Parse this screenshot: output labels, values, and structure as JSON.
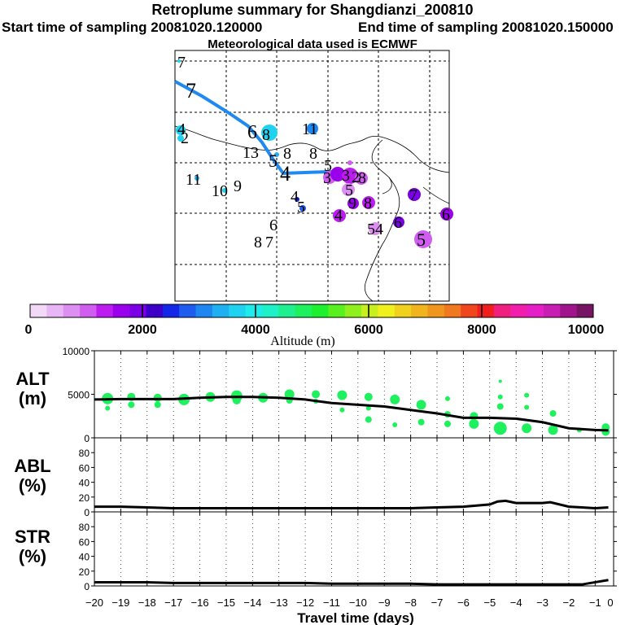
{
  "header": {
    "title": "Retroplume summary for Shangdianzi_200810",
    "start": "Start time of sampling 20081020.120000",
    "end": "End time of sampling 20081020.150000",
    "met": "Meteorological data used is ECMWF"
  },
  "colorbar": {
    "label": "Altitude (m)",
    "ticks": [
      "0",
      "2000",
      "4000",
      "6000",
      "8000",
      "10000"
    ],
    "colors": [
      "#f3d9f8",
      "#e9b6f5",
      "#dd8ff1",
      "#cf5ef0",
      "#bd1cf0",
      "#9a00ec",
      "#7b00e6",
      "#3c00c8",
      "#1426e8",
      "#1e5cf0",
      "#1e86f0",
      "#1eb0f0",
      "#1ed2f0",
      "#1eecea",
      "#1ef0c8",
      "#1ef090",
      "#1ef05e",
      "#1ef030",
      "#58f01e",
      "#90f01e",
      "#c8f01e",
      "#f0f01e",
      "#f0d21e",
      "#f0b41e",
      "#f0961e",
      "#f0781e",
      "#f0461e",
      "#f01e1e",
      "#f01e7e",
      "#f01eaa",
      "#e61ec8",
      "#c81eb4",
      "#a0148c",
      "#781464"
    ]
  },
  "map": {
    "labels": [
      "7",
      "7",
      "4",
      "2",
      "6",
      "8",
      "11",
      "13",
      "5",
      "8",
      "8",
      "5",
      "4",
      "3",
      "3",
      "2",
      "8",
      "5",
      "11",
      "10",
      "9",
      "4",
      "5",
      "6",
      "8",
      "7",
      "4",
      "9",
      "8",
      "7",
      "5",
      "4",
      "6",
      "6",
      "5"
    ]
  },
  "chart_data": [
    {
      "type": "line",
      "panel": "ALT",
      "ylabel_line1": "ALT",
      "ylabel_line2": "(m)",
      "ylim": [
        0,
        10000
      ],
      "yticks": [
        "0",
        "5000",
        "10000"
      ],
      "x": [
        -20,
        -19,
        -18,
        -17,
        -16,
        -15,
        -14,
        -13,
        -12,
        -11,
        -10,
        -9,
        -8,
        -7,
        -6,
        -5,
        -4,
        -3,
        -2,
        -1,
        -0.5
      ],
      "y": [
        4400,
        4450,
        4450,
        4450,
        4600,
        4700,
        4700,
        4600,
        4400,
        4000,
        3800,
        3600,
        3200,
        2800,
        2300,
        2300,
        2200,
        1800,
        1100,
        900,
        850
      ],
      "scatter": [
        {
          "x": -19.5,
          "y": 4500,
          "s": 7
        },
        {
          "x": -19.5,
          "y": 3400,
          "s": 3
        },
        {
          "x": -18.6,
          "y": 4700,
          "s": 5
        },
        {
          "x": -18.6,
          "y": 3800,
          "s": 4
        },
        {
          "x": -17.6,
          "y": 4600,
          "s": 5
        },
        {
          "x": -17.6,
          "y": 3800,
          "s": 4
        },
        {
          "x": -16.6,
          "y": 4400,
          "s": 7
        },
        {
          "x": -15.6,
          "y": 4700,
          "s": 6
        },
        {
          "x": -14.6,
          "y": 4800,
          "s": 7
        },
        {
          "x": -14.6,
          "y": 4300,
          "s": 5
        },
        {
          "x": -13.6,
          "y": 4600,
          "s": 6
        },
        {
          "x": -12.6,
          "y": 5000,
          "s": 6
        },
        {
          "x": -12.6,
          "y": 4300,
          "s": 4
        },
        {
          "x": -11.6,
          "y": 5000,
          "s": 5
        },
        {
          "x": -11.6,
          "y": 4200,
          "s": 3
        },
        {
          "x": -10.6,
          "y": 4900,
          "s": 6
        },
        {
          "x": -10.6,
          "y": 3200,
          "s": 3
        },
        {
          "x": -9.6,
          "y": 4700,
          "s": 5
        },
        {
          "x": -9.6,
          "y": 3400,
          "s": 3
        },
        {
          "x": -9.6,
          "y": 2100,
          "s": 4
        },
        {
          "x": -8.6,
          "y": 4400,
          "s": 6
        },
        {
          "x": -8.6,
          "y": 1500,
          "s": 3
        },
        {
          "x": -7.6,
          "y": 3800,
          "s": 6
        },
        {
          "x": -7.6,
          "y": 1800,
          "s": 4
        },
        {
          "x": -6.6,
          "y": 4500,
          "s": 3
        },
        {
          "x": -6.6,
          "y": 2700,
          "s": 4
        },
        {
          "x": -6.6,
          "y": 1600,
          "s": 4
        },
        {
          "x": -5.6,
          "y": 2500,
          "s": 5
        },
        {
          "x": -5.6,
          "y": 1600,
          "s": 6
        },
        {
          "x": -4.6,
          "y": 6500,
          "s": 2
        },
        {
          "x": -4.6,
          "y": 4700,
          "s": 3
        },
        {
          "x": -4.6,
          "y": 3600,
          "s": 4
        },
        {
          "x": -4.6,
          "y": 1100,
          "s": 8
        },
        {
          "x": -3.6,
          "y": 4900,
          "s": 3
        },
        {
          "x": -3.6,
          "y": 3500,
          "s": 3
        },
        {
          "x": -3.6,
          "y": 1100,
          "s": 6
        },
        {
          "x": -2.6,
          "y": 2800,
          "s": 4
        },
        {
          "x": -2.6,
          "y": 900,
          "s": 6
        },
        {
          "x": -1.6,
          "y": 900,
          "s": 3
        },
        {
          "x": -0.6,
          "y": 1200,
          "s": 5
        },
        {
          "x": -0.6,
          "y": 700,
          "s": 5
        }
      ]
    },
    {
      "type": "line",
      "panel": "ABL",
      "ylabel_line1": "ABL",
      "ylabel_line2": "(%)",
      "ylim": [
        0,
        100
      ],
      "yticks": [
        "0",
        "20",
        "40",
        "60",
        "80"
      ],
      "x": [
        -20,
        -19,
        -18,
        -17,
        -16,
        -15,
        -14,
        -13,
        -12,
        -11,
        -10,
        -9,
        -8,
        -7,
        -6,
        -5,
        -4.7,
        -4.4,
        -4,
        -3,
        -2.7,
        -2,
        -1.5,
        -1,
        -0.5
      ],
      "y": [
        7,
        7,
        6,
        5,
        5,
        5,
        5,
        5,
        5,
        5,
        5,
        5,
        5,
        6,
        7,
        10,
        14,
        15,
        12,
        12,
        13,
        7,
        6,
        5,
        6
      ]
    },
    {
      "type": "line",
      "panel": "STR",
      "ylabel_line1": "STR",
      "ylabel_line2": "(%)",
      "ylim": [
        0,
        100
      ],
      "yticks": [
        "0",
        "20",
        "40",
        "60",
        "80"
      ],
      "x": [
        -20,
        -19,
        -18,
        -17,
        -16,
        -15,
        -14,
        -13,
        -12,
        -11,
        -10,
        -9,
        -8,
        -7,
        -6,
        -5,
        -4,
        -3,
        -2,
        -1.5,
        -1,
        -0.5
      ],
      "y": [
        5,
        5,
        5,
        4,
        4,
        4,
        4,
        4,
        4,
        3,
        3,
        3,
        3,
        2,
        2,
        2,
        2,
        2,
        2,
        2,
        5,
        8
      ]
    }
  ],
  "xaxis": {
    "label": "Travel time (days)",
    "ticks": [
      "−20",
      "−19",
      "−18",
      "−17",
      "−16",
      "−15",
      "−14",
      "−13",
      "−12",
      "−11",
      "−10",
      "−9",
      "−8",
      "−7",
      "−6",
      "−5",
      "−4",
      "−3",
      "−2",
      "−1",
      "0"
    ]
  }
}
